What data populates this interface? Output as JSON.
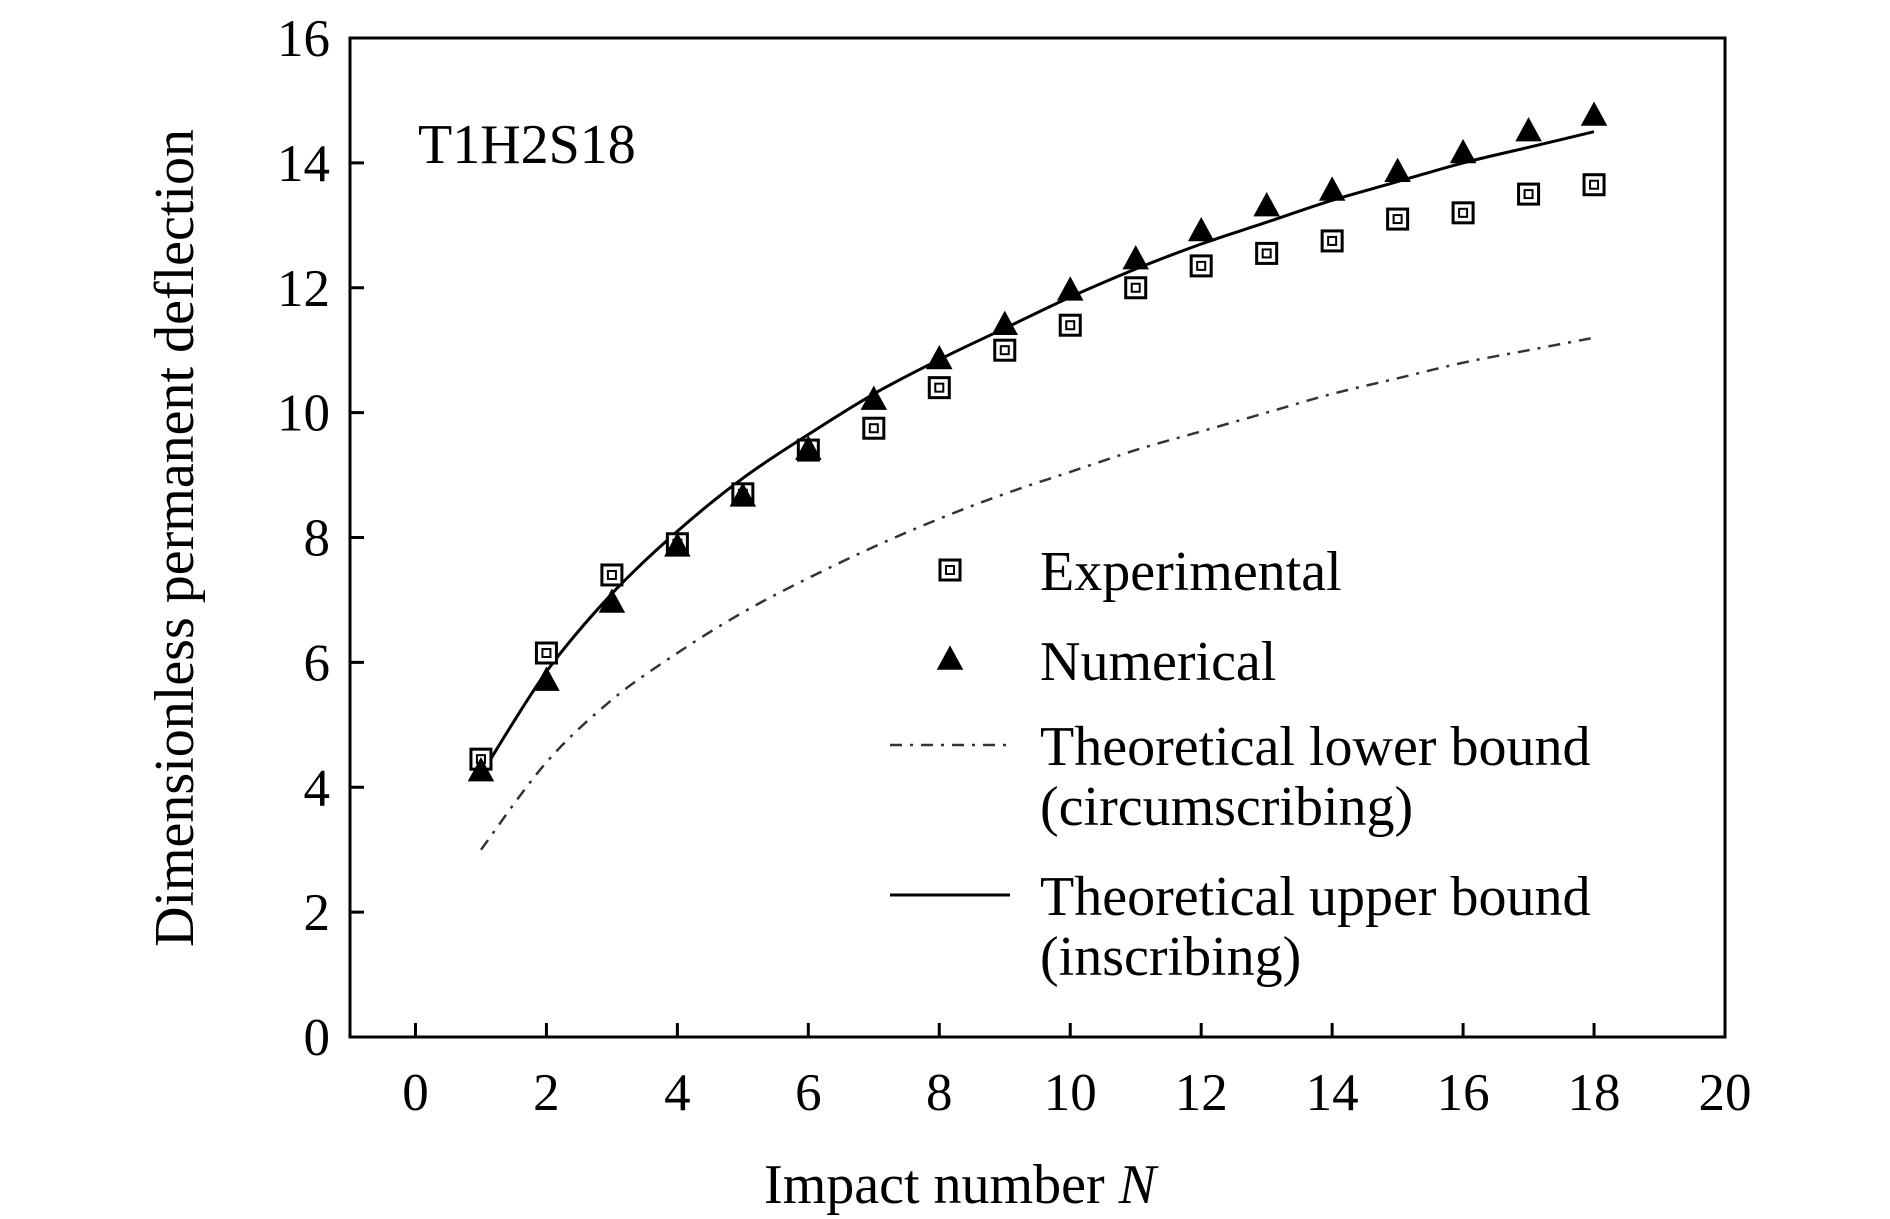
{
  "chart_data": {
    "type": "scatter",
    "annotation": "T1H2S18",
    "xlabel": "Impact number ",
    "xlabel_var": "N",
    "ylabel": "Dimensionless permanent deflection",
    "xlim": [
      -1,
      20
    ],
    "ylim": [
      0,
      16
    ],
    "x_ticks": [
      "0",
      "2",
      "4",
      "6",
      "8",
      "10",
      "12",
      "14",
      "16",
      "18",
      "20"
    ],
    "y_ticks": [
      "0",
      "2",
      "4",
      "6",
      "8",
      "10",
      "12",
      "14",
      "16"
    ],
    "grid": false,
    "legend_position": "center-right",
    "series": [
      {
        "name": "Experimental",
        "kind": "marker-square",
        "color": "#000000",
        "x": [
          1,
          2,
          3,
          4,
          5,
          6,
          7,
          8,
          9,
          10,
          11,
          12,
          13,
          14,
          15,
          16,
          17,
          18
        ],
        "y": [
          4.45,
          6.15,
          7.4,
          7.9,
          8.7,
          9.4,
          9.75,
          10.4,
          11.0,
          11.4,
          12.0,
          12.35,
          12.55,
          12.75,
          13.1,
          13.2,
          13.5,
          13.65
        ]
      },
      {
        "name": "Numerical",
        "kind": "marker-triangle",
        "color": "#000000",
        "x": [
          1,
          2,
          3,
          4,
          5,
          6,
          7,
          8,
          9,
          10,
          11,
          12,
          13,
          14,
          15,
          16,
          17,
          18
        ],
        "y": [
          4.25,
          5.7,
          6.95,
          7.85,
          8.65,
          9.4,
          10.2,
          10.85,
          11.4,
          11.95,
          12.45,
          12.9,
          13.3,
          13.55,
          13.85,
          14.15,
          14.5,
          14.75
        ]
      },
      {
        "name": "Theoretical lower bound",
        "name_line2": "(circumscribing)",
        "kind": "line-dashdot",
        "color": "#333333",
        "x": [
          1,
          2,
          3,
          4,
          5,
          6,
          7,
          8,
          9,
          10,
          11,
          12,
          13,
          14,
          15,
          16,
          17,
          18
        ],
        "y": [
          3.0,
          4.4,
          5.4,
          6.15,
          6.8,
          7.35,
          7.85,
          8.3,
          8.7,
          9.05,
          9.4,
          9.7,
          10.0,
          10.3,
          10.55,
          10.8,
          11.0,
          11.2
        ]
      },
      {
        "name": "Theoretical upper bound",
        "name_line2": "(inscribing)",
        "kind": "line-solid",
        "color": "#000000",
        "x": [
          1,
          2,
          3,
          4,
          5,
          6,
          7,
          8,
          9,
          10,
          11,
          12,
          13,
          14,
          15,
          16,
          17,
          18
        ],
        "y": [
          4.2,
          5.85,
          7.1,
          8.1,
          8.95,
          9.65,
          10.3,
          10.85,
          11.35,
          11.85,
          12.3,
          12.7,
          13.05,
          13.4,
          13.7,
          14.0,
          14.25,
          14.5
        ]
      }
    ]
  }
}
